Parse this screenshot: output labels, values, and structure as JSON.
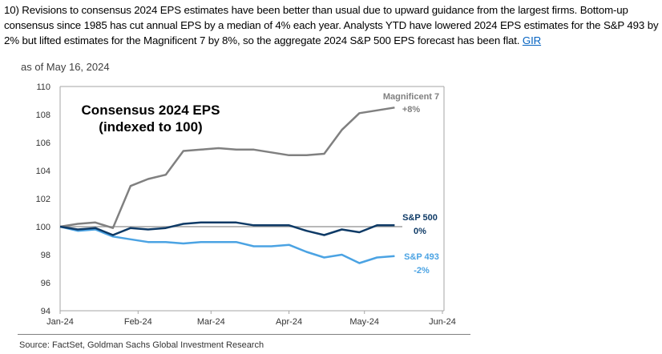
{
  "paragraph": {
    "text": "10) Revisions to consensus 2024 EPS estimates have been better than usual due to upward guidance from the largest firms. Bottom-up consensus since 1985 has cut annual EPS by a median of 4% each year. Analysts YTD have lowered 2024 EPS estimates for the S&P 493 by 2% but lifted estimates for the Magnificent 7 by 8%, so the aggregate 2024 S&P 500 EPS forecast has been flat. ",
    "link_text": "GIR"
  },
  "as_of": "as of May 16, 2024",
  "source": "Source: FactSet, Goldman Sachs Global Investment Research",
  "chart_data": {
    "type": "line",
    "title": "Consensus 2024 EPS",
    "subtitle": "(indexed to 100)",
    "xlabel": "",
    "ylabel": "",
    "ylim": [
      94,
      110
    ],
    "yticks": [
      94,
      96,
      98,
      100,
      102,
      104,
      106,
      108,
      110
    ],
    "xlim": [
      "2024-01-01",
      "2024-06-01"
    ],
    "xticks": [
      {
        "date": "2024-01-01",
        "label": "Jan-24"
      },
      {
        "date": "2024-02-01",
        "label": "Feb-24"
      },
      {
        "date": "2024-03-01",
        "label": "Mar-24"
      },
      {
        "date": "2024-04-01",
        "label": "Apr-24"
      },
      {
        "date": "2024-05-01",
        "label": "May-24"
      },
      {
        "date": "2024-06-01",
        "label": "Jun-24"
      }
    ],
    "reference_line": 100,
    "grid": false,
    "x": [
      "2024-01-01",
      "2024-01-08",
      "2024-01-15",
      "2024-01-22",
      "2024-01-29",
      "2024-02-05",
      "2024-02-12",
      "2024-02-19",
      "2024-02-26",
      "2024-03-04",
      "2024-03-11",
      "2024-03-18",
      "2024-03-25",
      "2024-04-01",
      "2024-04-08",
      "2024-04-15",
      "2024-04-22",
      "2024-04-29",
      "2024-05-06",
      "2024-05-13"
    ],
    "series": [
      {
        "name": "Magnificent 7",
        "change_label": "+8%",
        "color": "#808080",
        "values": [
          100.0,
          100.2,
          100.3,
          99.9,
          102.9,
          103.4,
          103.7,
          105.4,
          105.5,
          105.6,
          105.5,
          105.5,
          105.3,
          105.1,
          105.1,
          105.2,
          106.9,
          108.1,
          108.3,
          108.5
        ]
      },
      {
        "name": "S&P 500",
        "change_label": "0%",
        "color": "#0e3a66",
        "values": [
          100.0,
          99.8,
          99.9,
          99.4,
          99.9,
          99.8,
          99.9,
          100.2,
          100.3,
          100.3,
          100.3,
          100.1,
          100.1,
          100.1,
          99.7,
          99.4,
          99.8,
          99.6,
          100.1,
          100.1
        ]
      },
      {
        "name": "S&P 493",
        "change_label": "-2%",
        "color": "#4ba3e3",
        "values": [
          100.0,
          99.7,
          99.8,
          99.3,
          99.1,
          98.9,
          98.9,
          98.8,
          98.9,
          98.9,
          98.9,
          98.6,
          98.6,
          98.7,
          98.2,
          97.8,
          98.0,
          97.4,
          97.8,
          97.9
        ]
      }
    ]
  }
}
